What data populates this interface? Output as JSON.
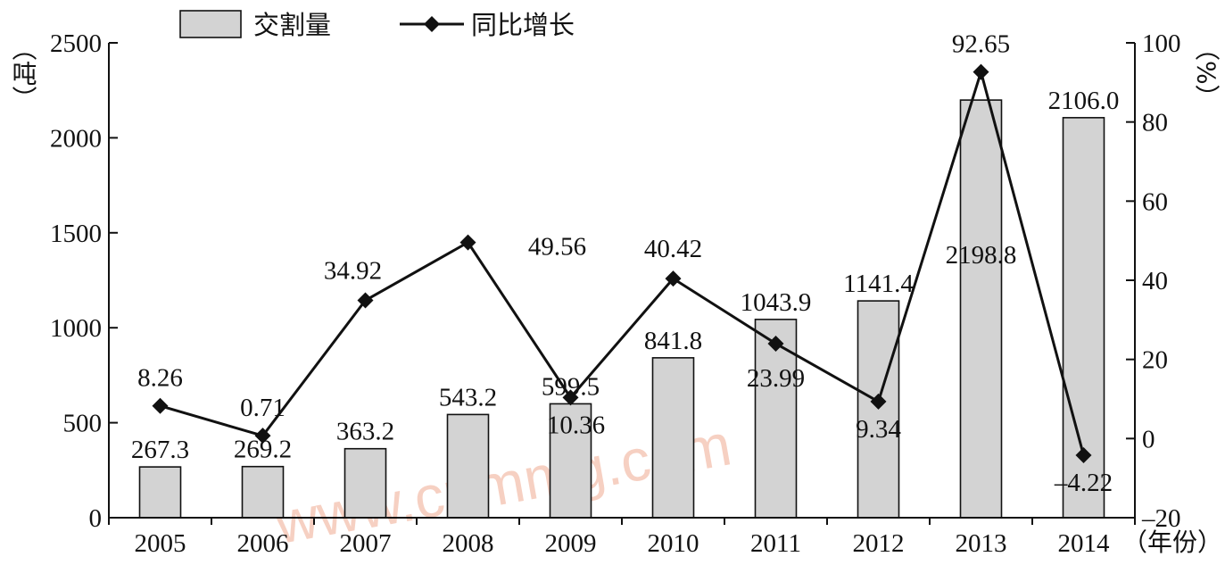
{
  "chart_data": {
    "type": "bar+line",
    "categories": [
      "2005",
      "2006",
      "2007",
      "2008",
      "2009",
      "2010",
      "2011",
      "2012",
      "2013",
      "2014"
    ],
    "series": [
      {
        "name": "交割量",
        "type": "bar",
        "axis": "left",
        "color": "#d3d3d3",
        "values": [
          267.3,
          269.2,
          363.2,
          543.2,
          599.5,
          841.8,
          1043.9,
          1141.4,
          2198.8,
          2106.0
        ],
        "labels": [
          "267.3",
          "269.2",
          "363.2",
          "543.2",
          "599.5",
          "841.8",
          "1043.9",
          "1141.4",
          "2198.8",
          "2106.0"
        ]
      },
      {
        "name": "同比增长",
        "type": "line",
        "axis": "right",
        "color": "#111111",
        "values": [
          8.26,
          0.71,
          34.92,
          49.56,
          10.36,
          40.42,
          23.99,
          9.34,
          92.65,
          -4.22
        ],
        "labels": [
          "8.26",
          "0.71",
          "34.92",
          "49.56",
          "10.36",
          "40.42",
          "23.99",
          "9.34",
          "92.65",
          "–4.22"
        ]
      }
    ],
    "y_left": {
      "unit": "（吨）",
      "range": [
        0,
        2500
      ],
      "ticks": [
        "0",
        "500",
        "1000",
        "1500",
        "2000",
        "2500"
      ]
    },
    "y_right": {
      "unit": "（%）",
      "range": [
        -20,
        100
      ],
      "ticks": [
        "–20",
        "0",
        "20",
        "40",
        "60",
        "80",
        "100"
      ]
    },
    "x_axis": {
      "unit": "（年份）"
    },
    "legend": {
      "position": "top-left",
      "items": [
        "交割量",
        "同比增长"
      ]
    },
    "grid": false,
    "watermark": "www.cnmmg.com"
  }
}
